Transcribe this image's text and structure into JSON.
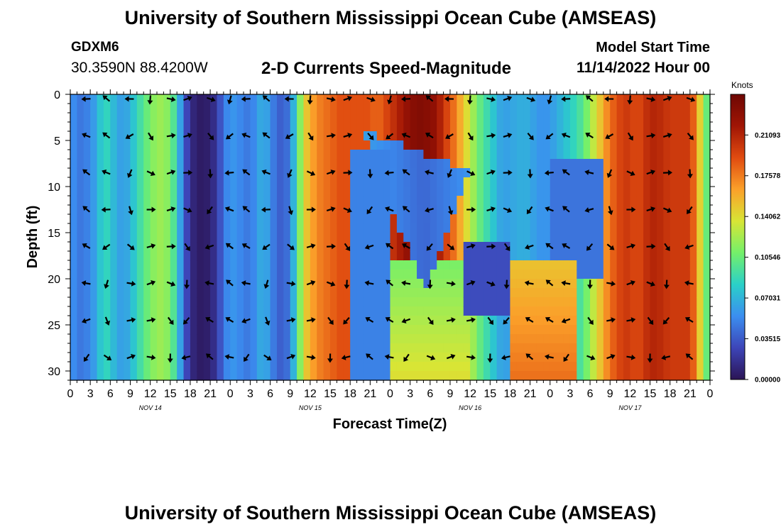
{
  "header": {
    "title": "University of Southern Mississippi Ocean Cube (AMSEAS)",
    "station": "GDXM6",
    "coords": "30.3590N  88.4200W",
    "plot_title": "2-D Currents Speed-Magnitude",
    "start_label": "Model Start Time",
    "start_value": "11/14/2022 Hour 00"
  },
  "footer": {
    "title": "University of Southern Mississippi Ocean Cube (AMSEAS)"
  },
  "chart_data": {
    "type": "heatmap",
    "title": "2-D Currents Speed-Magnitude",
    "xlabel": "Forecast Time(Z)",
    "ylabel": "Depth (ft)",
    "x_ticks": [
      "0",
      "3",
      "6",
      "9",
      "12",
      "15",
      "18",
      "21",
      "0",
      "3",
      "6",
      "9",
      "12",
      "15",
      "18",
      "21",
      "0",
      "3",
      "6",
      "9",
      "12",
      "15",
      "18",
      "21",
      "0",
      "3",
      "6",
      "9",
      "12",
      "15",
      "18",
      "21",
      "0"
    ],
    "day_labels": [
      "NOV 14",
      "NOV 15",
      "NOV 16",
      "NOV 17"
    ],
    "xlim": [
      0,
      96
    ],
    "y_ticks": [
      0,
      5,
      10,
      15,
      20,
      25,
      30
    ],
    "ylim": [
      0,
      31
    ],
    "colorbar": {
      "label": "Knots",
      "ticks": [
        "0.21093",
        "0.17578",
        "0.14062",
        "0.10546",
        "0.07031",
        "0.03515",
        "0.00000"
      ],
      "range": [
        0,
        0.246
      ],
      "colors": [
        "#2b1455",
        "#3d45b8",
        "#3b8ef0",
        "#2ad0c8",
        "#74f06a",
        "#d8e535",
        "#fba02a",
        "#e04b10",
        "#a01505",
        "#6e0703"
      ]
    },
    "arrow_hours": [
      2.5,
      5.5,
      9,
      12,
      15,
      17.5,
      21,
      24,
      26.5,
      29.5,
      33,
      36,
      39,
      41.5,
      45,
      48,
      50.5,
      54,
      57,
      60,
      63,
      65.5,
      69,
      72,
      74.5,
      78,
      81,
      84,
      87,
      89.5,
      93
    ],
    "arrow_depths": [
      0.5,
      4.5,
      8.5,
      12.5,
      16.5,
      20.5,
      24.5,
      28.5
    ],
    "profile_hours": [
      0,
      1,
      2,
      3,
      4,
      5,
      6,
      7,
      8,
      9,
      10,
      11,
      12,
      13,
      14,
      15,
      16,
      17,
      18,
      19,
      20,
      21,
      22,
      23,
      24,
      25,
      26,
      27,
      28,
      29,
      30,
      31,
      32,
      33,
      34,
      35,
      36,
      37,
      38,
      39,
      40,
      41,
      42,
      43,
      44,
      45,
      46,
      47,
      48,
      49,
      50,
      51,
      52,
      53,
      54,
      55,
      56,
      57,
      58,
      59,
      60,
      61,
      62,
      63,
      64,
      65,
      66,
      67,
      68,
      69,
      70,
      71,
      72,
      73,
      74,
      75,
      76,
      77,
      78,
      79,
      80,
      81,
      82,
      83,
      84,
      85,
      86,
      87,
      88,
      89,
      90,
      91,
      92,
      93,
      94,
      95,
      96
    ],
    "profile_speed": [
      0.06,
      0.048,
      0.045,
      0.055,
      0.065,
      0.09,
      0.08,
      0.065,
      0.06,
      0.07,
      0.085,
      0.1,
      0.11,
      0.12,
      0.12,
      0.11,
      0.085,
      0.04,
      0.015,
      0.005,
      0.004,
      0.008,
      0.02,
      0.045,
      0.06,
      0.055,
      0.05,
      0.045,
      0.06,
      0.07,
      0.055,
      0.04,
      0.035,
      0.05,
      0.09,
      0.14,
      0.16,
      0.17,
      0.18,
      0.18,
      0.19,
      0.19,
      0.19,
      0.19,
      0.19,
      0.19,
      0.18,
      0.19,
      0.2,
      0.21,
      0.22,
      0.23,
      0.235,
      0.235,
      0.23,
      0.225,
      0.2,
      0.19,
      0.17,
      0.15,
      0.13,
      0.11,
      0.095,
      0.085,
      0.07,
      0.06,
      0.065,
      0.065,
      0.07,
      0.065,
      0.06,
      0.055,
      0.06,
      0.065,
      0.075,
      0.08,
      0.09,
      0.1,
      0.12,
      0.14,
      0.16,
      0.18,
      0.19,
      0.2,
      0.2,
      0.19,
      0.2,
      0.21,
      0.21,
      0.205,
      0.2,
      0.2,
      0.2,
      0.2,
      0.17,
      0.12,
      0.09
    ]
  }
}
